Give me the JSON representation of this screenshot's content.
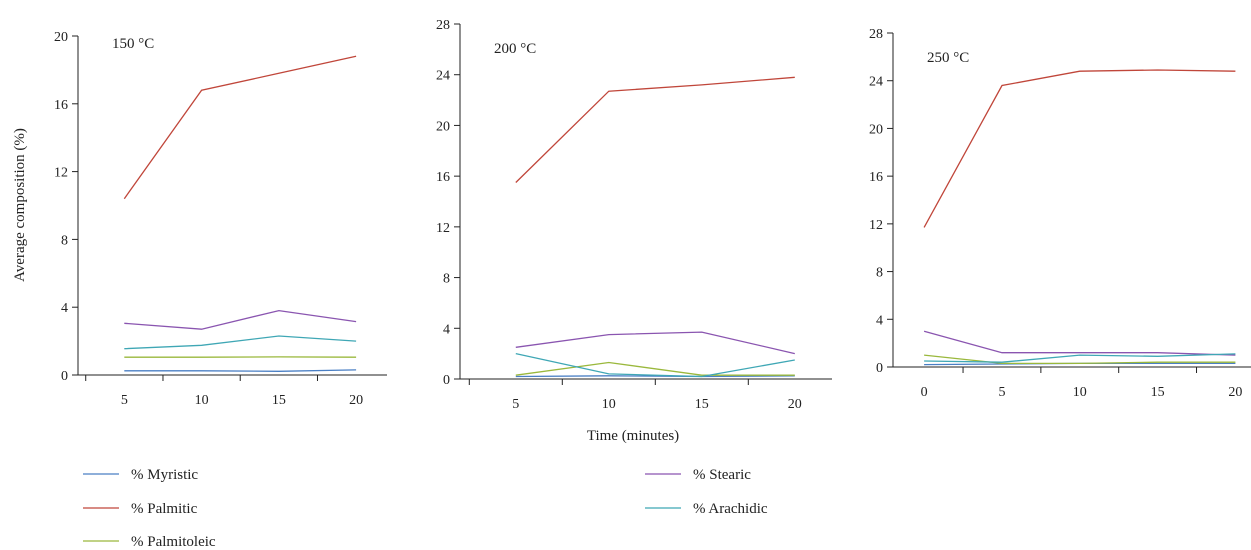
{
  "ylabel": "Average composition (%)",
  "xlabel": "Time (minutes)",
  "series_colors": {
    "% Myristic": "#4a7fc4",
    "% Palmitic": "#c0463a",
    "% Palmitoleic": "#9ab83c",
    "% Stearic": "#8a55b0",
    "% Arachidic": "#3fa7b5"
  },
  "chart_data": [
    {
      "type": "line",
      "title": "150 °C",
      "x": [
        5,
        10,
        15,
        20
      ],
      "ylim": [
        0,
        20
      ],
      "yticks": [
        0,
        4,
        8,
        12,
        16,
        20
      ],
      "xlim": [
        2,
        22
      ],
      "xticks": [
        5,
        10,
        15,
        20
      ],
      "series": [
        {
          "name": "% Myristic",
          "values": [
            0.25,
            0.25,
            0.22,
            0.3
          ]
        },
        {
          "name": "% Palmitic",
          "values": [
            10.4,
            16.8,
            17.8,
            18.8
          ]
        },
        {
          "name": "% Palmitoleic",
          "values": [
            1.05,
            1.05,
            1.07,
            1.05
          ]
        },
        {
          "name": "% Stearic",
          "values": [
            3.05,
            2.7,
            3.8,
            3.15
          ]
        },
        {
          "name": "% Arachidic",
          "values": [
            1.55,
            1.75,
            2.3,
            2.0
          ]
        }
      ]
    },
    {
      "type": "line",
      "title": "200 °C",
      "x": [
        5,
        10,
        15,
        20
      ],
      "ylim": [
        0,
        28
      ],
      "yticks": [
        0,
        4,
        8,
        12,
        16,
        20,
        24,
        28
      ],
      "xlim": [
        2,
        22
      ],
      "xticks": [
        5,
        10,
        15,
        20
      ],
      "series": [
        {
          "name": "% Myristic",
          "values": [
            0.2,
            0.25,
            0.2,
            0.25
          ]
        },
        {
          "name": "% Palmitic",
          "values": [
            15.5,
            22.7,
            23.2,
            23.8
          ]
        },
        {
          "name": "% Palmitoleic",
          "values": [
            0.3,
            1.3,
            0.3,
            0.3
          ]
        },
        {
          "name": "% Stearic",
          "values": [
            2.5,
            3.5,
            3.7,
            2.0
          ]
        },
        {
          "name": "% Arachidic",
          "values": [
            2.0,
            0.4,
            0.2,
            1.5
          ]
        }
      ]
    },
    {
      "type": "line",
      "title": "250 °C",
      "x": [
        0,
        5,
        10,
        15,
        20
      ],
      "ylim": [
        0,
        28
      ],
      "yticks": [
        0,
        4,
        8,
        12,
        16,
        20,
        24,
        28
      ],
      "xlim": [
        -2,
        21
      ],
      "xticks": [
        0,
        5,
        10,
        15,
        20
      ],
      "series": [
        {
          "name": "% Myristic",
          "values": [
            0.2,
            0.25,
            0.3,
            0.3,
            0.3
          ]
        },
        {
          "name": "% Palmitic",
          "values": [
            11.7,
            23.6,
            24.8,
            24.9,
            24.8
          ]
        },
        {
          "name": "% Palmitoleic",
          "values": [
            1.0,
            0.3,
            0.3,
            0.4,
            0.4
          ]
        },
        {
          "name": "% Stearic",
          "values": [
            3.0,
            1.2,
            1.2,
            1.2,
            1.0
          ]
        },
        {
          "name": "% Arachidic",
          "values": [
            0.5,
            0.4,
            1.0,
            0.9,
            1.1
          ]
        }
      ]
    }
  ],
  "legend": [
    {
      "name": "% Myristic",
      "color": "#4a7fc4"
    },
    {
      "name": "% Palmitic",
      "color": "#c0463a"
    },
    {
      "name": "% Palmitoleic",
      "color": "#9ab83c"
    },
    {
      "name": "% Stearic",
      "color": "#8a55b0"
    },
    {
      "name": "% Arachidic",
      "color": "#3fa7b5"
    }
  ]
}
